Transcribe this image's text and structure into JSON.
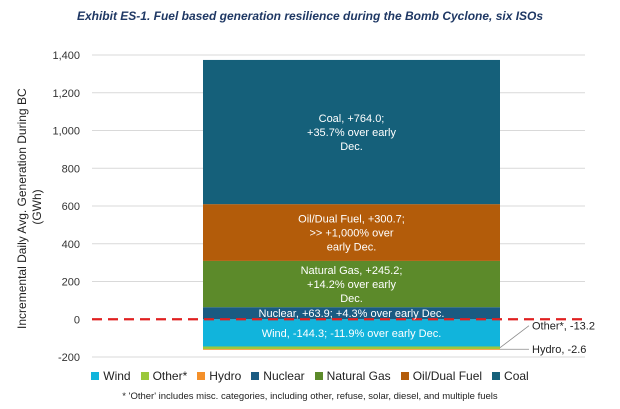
{
  "chart_data": {
    "type": "bar",
    "stacked": true,
    "title": "Exhibit ES-1. Fuel based generation resilience during the Bomb Cyclone, six ISOs",
    "ylabel": "Incremental Daily Avg. Generation During BC (GWh)",
    "xlabel": "",
    "ylim": [
      -200,
      1400
    ],
    "yticks": [
      -200,
      0,
      200,
      400,
      600,
      800,
      1000,
      1200,
      1400
    ],
    "ytick_labels": [
      "-200",
      "0",
      "200",
      "400",
      "600",
      "800",
      "1,000",
      "1,200",
      "1,400"
    ],
    "grid": true,
    "zero_line": "red dashed",
    "legend_position": "bottom",
    "series": [
      {
        "name": "Wind",
        "key": "wind",
        "value": -144.3,
        "color": "#11b4dc",
        "label_lines": [
          "Wind, -144.3; -11.9% over early Dec."
        ],
        "label_side": false
      },
      {
        "name": "Other*",
        "key": "other",
        "value": -13.2,
        "color": "#9bc83c",
        "label_lines": [
          "Other*, -13.2"
        ],
        "label_side": true
      },
      {
        "name": "Hydro",
        "key": "hydro",
        "value": -2.6,
        "color": "#f4902a",
        "label_lines": [
          "Hydro, -2.6"
        ],
        "label_side": true
      },
      {
        "name": "Nuclear",
        "key": "nuclear",
        "value": 63.9,
        "color": "#1a5b82",
        "label_lines": [
          "Nuclear, +63.9; +4.3% over early Dec."
        ],
        "label_side": false
      },
      {
        "name": "Natural Gas",
        "key": "natural_gas",
        "value": 245.2,
        "color": "#5c8a2a",
        "label_lines": [
          "Natural Gas, +245.2;",
          "+14.2% over early",
          "Dec."
        ],
        "label_side": false
      },
      {
        "name": "Oil/Dual Fuel",
        "key": "oil_dual_fuel",
        "value": 300.7,
        "color": "#b35c0a",
        "label_lines": [
          "Oil/Dual Fuel, +300.7;",
          ">> +1,000% over",
          "early Dec."
        ],
        "label_side": false
      },
      {
        "name": "Coal",
        "key": "coal",
        "value": 764.0,
        "color": "#15607a",
        "label_lines": [
          "Coal, +764.0;",
          "+35.7% over early",
          "Dec."
        ],
        "label_side": false
      }
    ],
    "footnote": "* 'Other' includes misc. categories, including other, refuse, solar, diesel, and multiple fuels"
  }
}
